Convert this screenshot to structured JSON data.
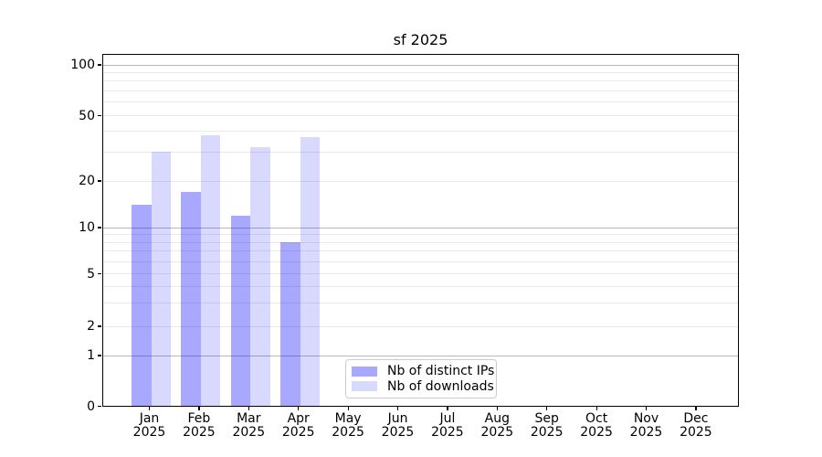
{
  "title": "sf 2025",
  "chart_data": {
    "type": "bar",
    "title": "sf 2025",
    "categories": [
      "Jan 2025",
      "Feb 2025",
      "Mar 2025",
      "Apr 2025",
      "May 2025",
      "Jun 2025",
      "Jul 2025",
      "Aug 2025",
      "Sep 2025",
      "Oct 2025",
      "Nov 2025",
      "Dec 2025"
    ],
    "series": [
      {
        "name": "Nb of distinct IPs",
        "color": "rgba(0,0,255,0.34)",
        "values": [
          14,
          17,
          12,
          8,
          null,
          null,
          null,
          null,
          null,
          null,
          null,
          null
        ]
      },
      {
        "name": "Nb of downloads",
        "color": "rgba(0,0,255,0.15)",
        "values": [
          30,
          38,
          32,
          37,
          null,
          null,
          null,
          null,
          null,
          null,
          null,
          null
        ]
      }
    ],
    "xlabel": "",
    "ylabel": "",
    "yscale": "symlog",
    "y_ticks": [
      0,
      1,
      2,
      5,
      10,
      20,
      50,
      100
    ],
    "ylim": [
      0,
      117
    ],
    "grid": true,
    "legend_position": "lower center"
  },
  "colors": {
    "bar_dark": "rgba(0,0,255,0.34)",
    "bar_light": "rgba(0,0,255,0.15)",
    "grid_major": "#b8b8b8",
    "grid_minor": "#e9e9e9",
    "axis": "#000000"
  }
}
